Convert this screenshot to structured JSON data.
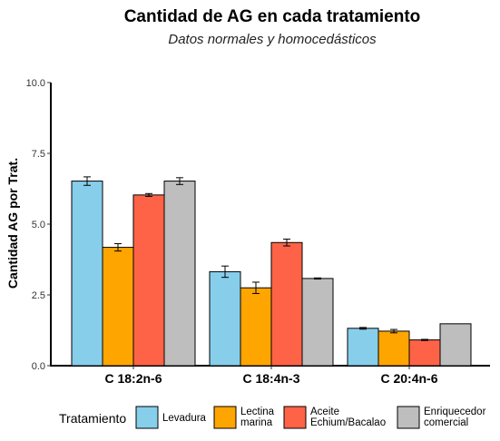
{
  "chart_data": {
    "type": "bar",
    "title": "Cantidad de AG en cada tratamiento",
    "subtitle": "Datos normales y homocedásticos",
    "xlabel": "",
    "ylabel": "Cantidad AG por Trat.",
    "ylim": [
      0,
      10
    ],
    "yticks": [
      "0.0",
      "2.5",
      "5.0",
      "7.5",
      "10.0"
    ],
    "grid": false,
    "legend_position": "bottom",
    "legend_title": "Tratamiento",
    "categories": [
      "C 18:2n-6",
      "C 18:4n-3",
      "C 20:4n-6"
    ],
    "series": [
      {
        "name": "Levadura",
        "legend_lines": [
          "Levadura"
        ],
        "color": "#87CEEB",
        "values": [
          6.52,
          3.32,
          1.32
        ],
        "errors": [
          0.15,
          0.2,
          0.03
        ]
      },
      {
        "name": "Lectina marina",
        "legend_lines": [
          "Lectina",
          "marina"
        ],
        "color": "#FFA500",
        "values": [
          4.18,
          2.75,
          1.22
        ],
        "errors": [
          0.13,
          0.2,
          0.06
        ]
      },
      {
        "name": "Aceite Echium/Bacalao",
        "legend_lines": [
          "Aceite",
          "Echium/Bacalao"
        ],
        "color": "#FF6347",
        "values": [
          6.03,
          4.35,
          0.91
        ],
        "errors": [
          0.05,
          0.12,
          0.02
        ]
      },
      {
        "name": "Enriquecedor comercial",
        "legend_lines": [
          "Enriquecedor",
          "comercial"
        ],
        "color": "#BEBEBE",
        "values": [
          6.52,
          3.08,
          1.48
        ],
        "errors": [
          0.12,
          0.02,
          0.0
        ]
      }
    ]
  }
}
